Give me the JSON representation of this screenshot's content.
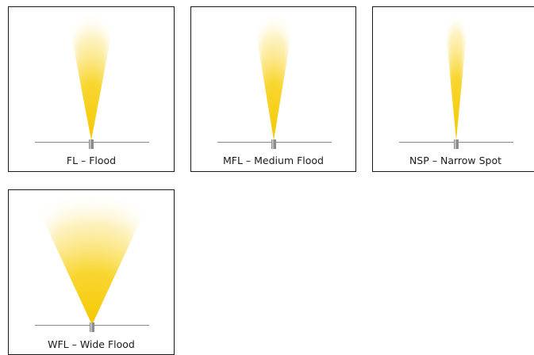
{
  "panels": [
    {
      "id": "fl",
      "label": "FL – Flood"
    },
    {
      "id": "mfl",
      "label": "MFL – Medium Flood"
    },
    {
      "id": "nsp",
      "label": "NSP – Narrow Spot"
    },
    {
      "id": "wfl",
      "label": "WFL – Wide Flood"
    }
  ],
  "colors": {
    "beam": "#f5c800",
    "floor_line": "#888888",
    "fixture": "#8c8c8c",
    "border": "#1a1a1a"
  }
}
